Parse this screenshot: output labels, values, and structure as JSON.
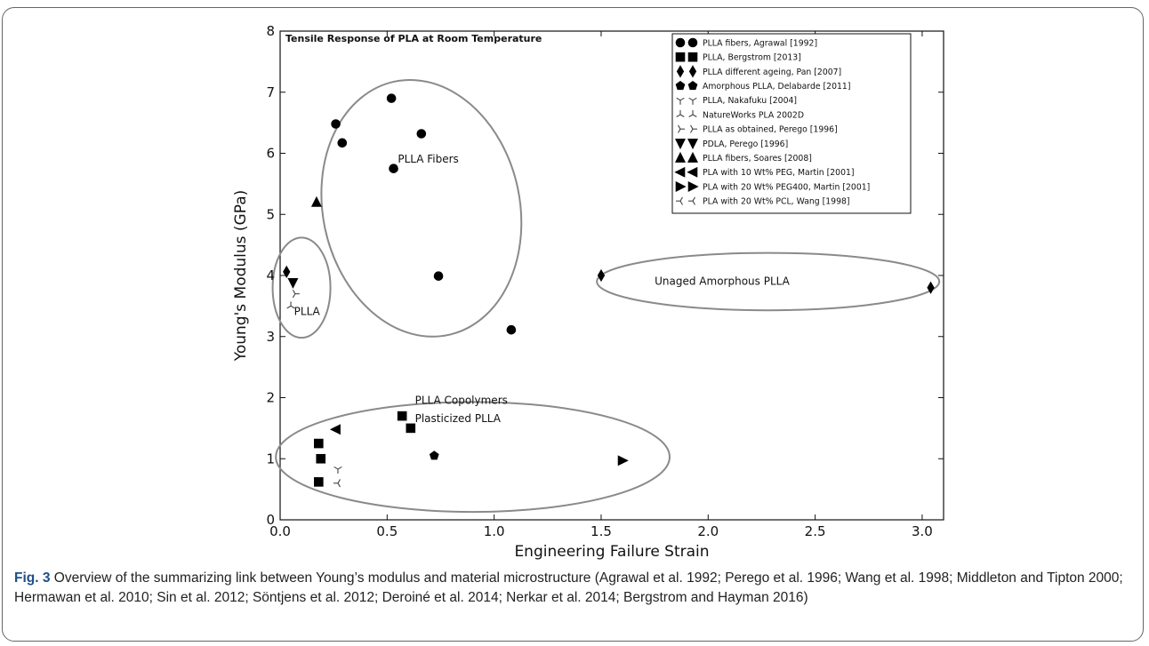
{
  "chart_data": {
    "type": "scatter",
    "title": "Tensile Response of PLA at Room Temperature",
    "xlabel": "Engineering Failure Strain",
    "ylabel": "Young's Modulus (GPa)",
    "xlim": [
      0.0,
      3.1
    ],
    "ylim": [
      0,
      8
    ],
    "x_ticks": [
      "0.0",
      "0.5",
      "1.0",
      "1.5",
      "2.0",
      "2.5",
      "3.0"
    ],
    "y_ticks": [
      "0",
      "1",
      "2",
      "3",
      "4",
      "5",
      "6",
      "7",
      "8"
    ],
    "grid": false,
    "legend_position": "top-right",
    "series": [
      {
        "name": "PLLA fibers, Agrawal [1992]",
        "marker": "circle",
        "points": [
          [
            0.26,
            6.48
          ],
          [
            0.29,
            6.17
          ],
          [
            0.52,
            6.9
          ],
          [
            0.53,
            5.75
          ],
          [
            0.66,
            6.32
          ],
          [
            0.74,
            3.99
          ],
          [
            1.08,
            3.11
          ]
        ]
      },
      {
        "name": "PLLA, Bergstrom [2013]",
        "marker": "square",
        "points": [
          [
            0.18,
            1.25
          ],
          [
            0.18,
            0.62
          ],
          [
            0.19,
            1.0
          ],
          [
            0.57,
            1.7
          ],
          [
            0.61,
            1.5
          ]
        ]
      },
      {
        "name": "PLLA different ageing, Pan [2007]",
        "marker": "diamond",
        "points": [
          [
            0.03,
            4.06
          ],
          [
            1.5,
            4.0
          ],
          [
            3.04,
            3.8
          ]
        ]
      },
      {
        "name": "Amorphous PLLA, Delabarde [2011]",
        "marker": "pentagon",
        "points": [
          [
            0.72,
            1.05
          ]
        ]
      },
      {
        "name": "PLLA, Nakafuku [2004]",
        "marker": "tri-down-line",
        "points": [
          [
            0.27,
            0.83
          ]
        ]
      },
      {
        "name": "NatureWorks PLA 2002D",
        "marker": "tri-up-line",
        "points": [
          [
            0.05,
            3.5
          ]
        ]
      },
      {
        "name": "PLLA as obtained, Perego [1996]",
        "marker": "tri-right-line",
        "points": [
          [
            0.07,
            3.7
          ]
        ]
      },
      {
        "name": "PDLA, Perego [1996]",
        "marker": "triangle-down",
        "points": [
          [
            0.06,
            3.88
          ]
        ]
      },
      {
        "name": "PLLA fibers, Soares [2008]",
        "marker": "triangle-up",
        "points": [
          [
            0.17,
            5.2
          ]
        ]
      },
      {
        "name": "PLA with 10 Wt% PEG, Martin [2001]",
        "marker": "triangle-left",
        "points": [
          [
            0.26,
            1.48
          ]
        ]
      },
      {
        "name": "PLA with 20 Wt% PEG400, Martin [2001]",
        "marker": "triangle-right",
        "points": [
          [
            1.6,
            0.97
          ]
        ]
      },
      {
        "name": "PLA with 20 Wt% PCL, Wang [1998]",
        "marker": "tri-left-line",
        "points": [
          [
            0.27,
            0.6
          ]
        ]
      }
    ],
    "regions": [
      {
        "label": "PLLA",
        "cx": 0.1,
        "cy": 3.8,
        "rx": 0.135,
        "ry": 0.82,
        "angle": 0
      },
      {
        "label": "PLLA Fibers",
        "cx": 0.66,
        "cy": 5.1,
        "rx": 0.46,
        "ry": 2.12,
        "angle": -12
      },
      {
        "label": "Unaged Amorphous PLLA",
        "cx": 2.28,
        "cy": 3.9,
        "rx": 0.8,
        "ry": 0.47,
        "angle": 0
      },
      {
        "label": "PLLA Copolymers\nPlasticized PLLA",
        "cx": 0.9,
        "cy": 1.03,
        "rx": 0.92,
        "ry": 0.9,
        "angle": 0
      }
    ],
    "annotations": [
      {
        "text": "PLLA",
        "x": 0.065,
        "y": 3.35
      },
      {
        "text": "PLLA Fibers",
        "x": 0.55,
        "y": 5.85
      },
      {
        "text": "Unaged Amorphous PLLA",
        "x": 1.75,
        "y": 3.85
      },
      {
        "text": "PLLA Copolymers",
        "x": 0.63,
        "y": 1.9
      },
      {
        "text": "Plasticized PLLA",
        "x": 0.63,
        "y": 1.6
      }
    ]
  },
  "caption": {
    "label": "Fig. 3",
    "text": " Overview of the summarizing link between Young’s modulus and material microstructure (Agrawal et al. 1992; Perego et al. 1996; Wang et al. 1998; Middleton and Tipton 2000; Hermawan et al. 2010; Sin et al. 2012; Söntjens et al. 2012; Deroiné et al. 2014; Nerkar et al. 2014; Bergstrom and Hayman 2016)"
  }
}
